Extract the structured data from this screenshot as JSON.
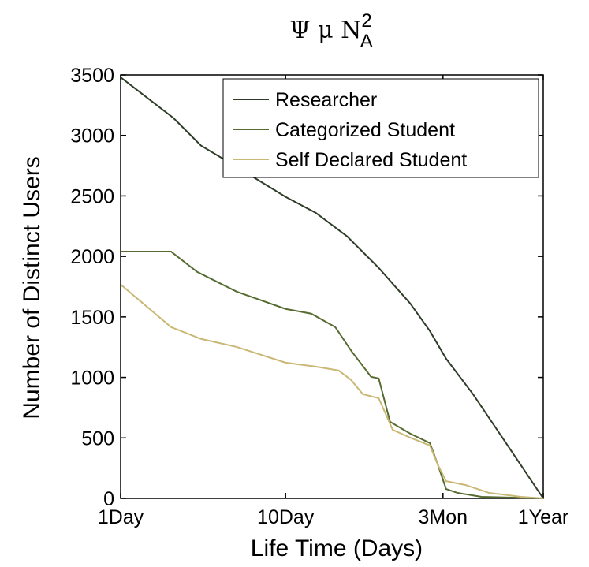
{
  "chart_data": {
    "type": "line",
    "title": "Ψ μ N",
    "title_superscript": "2",
    "title_subscript": "A",
    "x_label": "Life Time (Days)",
    "y_label": "Number of Distinct Users",
    "xscale": "log",
    "xlim": [
      1,
      365
    ],
    "ylim": [
      0,
      3500
    ],
    "xticks": [
      {
        "value": 1,
        "label": "1Day"
      },
      {
        "value": 10,
        "label": "10Day"
      },
      {
        "value": 90,
        "label": "3Mon"
      },
      {
        "value": 365,
        "label": "1Year"
      }
    ],
    "yticks": [
      0,
      500,
      1000,
      1500,
      2000,
      2500,
      3000,
      3500
    ],
    "legend": "upper right",
    "series": [
      {
        "name": "Researcher",
        "color": "#2e3d28",
        "x": [
          1,
          2.09,
          3.07,
          5.05,
          10,
          15.2,
          23.6,
          36.7,
          57,
          75,
          94,
          137,
          214,
          365
        ],
        "values": [
          3480,
          3144,
          2916,
          2740,
          2492,
          2361,
          2166,
          1905,
          1611,
          1383,
          1155,
          861,
          470,
          0
        ]
      },
      {
        "name": "Categorized Student",
        "color": "#566b30",
        "x": [
          1,
          2.02,
          2.91,
          5.05,
          10,
          14.3,
          20,
          25,
          33,
          36.7,
          43,
          57,
          75,
          84,
          94,
          110,
          154,
          365
        ],
        "values": [
          2040,
          2040,
          1872,
          1709,
          1566,
          1527,
          1416,
          1220,
          1005,
          992,
          633,
          535,
          457,
          274,
          78,
          46,
          13,
          0
        ]
      },
      {
        "name": "Self Declared Student",
        "color": "#c9b874",
        "x": [
          1,
          2.02,
          3.07,
          5.05,
          10,
          15.2,
          21,
          25,
          29.4,
          36.7,
          44.6,
          57,
          75,
          84,
          94,
          123,
          171,
          267,
          365
        ],
        "values": [
          1768,
          1416,
          1318,
          1252,
          1122,
          1089,
          1057,
          978,
          861,
          828,
          567,
          502,
          437,
          274,
          143,
          111,
          46,
          13,
          0
        ]
      }
    ]
  }
}
